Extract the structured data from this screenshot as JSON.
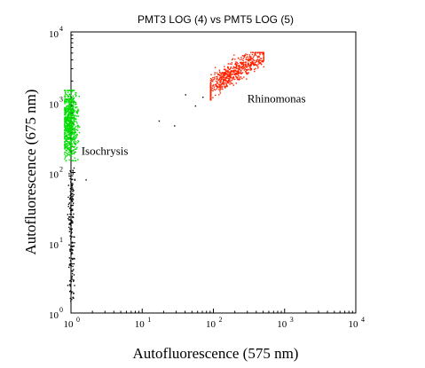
{
  "chart_data": {
    "type": "scatter",
    "title": "PMT3 LOG (4) vs PMT5 LOG (5)",
    "xlabel": "Autofluorescence (575 nm)",
    "ylabel": "Autofluorescence (675 nm)",
    "x_scale": "log",
    "y_scale": "log",
    "xlim": [
      1,
      10000
    ],
    "ylim": [
      1,
      10000
    ],
    "x_ticks": [
      {
        "base": "10",
        "exp": "0",
        "value": 1
      },
      {
        "base": "10",
        "exp": "1",
        "value": 10
      },
      {
        "base": "10",
        "exp": "2",
        "value": 100
      },
      {
        "base": "10",
        "exp": "3",
        "value": 1000
      },
      {
        "base": "10",
        "exp": "4",
        "value": 10000
      }
    ],
    "y_ticks": [
      {
        "base": "10",
        "exp": "0",
        "value": 1
      },
      {
        "base": "10",
        "exp": "1",
        "value": 10
      },
      {
        "base": "10",
        "exp": "2",
        "value": 100
      },
      {
        "base": "10",
        "exp": "3",
        "value": 1000
      },
      {
        "base": "10",
        "exp": "4",
        "value": 10000
      }
    ],
    "grid": false,
    "populations": [
      {
        "label": "Isochrysis",
        "color": "#00dd00",
        "x_center": 0.95,
        "y_center": 500,
        "x_range": [
          0.8,
          1.3
        ],
        "y_range": [
          150,
          1500
        ],
        "label_x": 1.4,
        "label_y": 180
      },
      {
        "label": "Rhinomonas",
        "color": "#ff2200",
        "x_center": 200,
        "y_center": 2800,
        "x_range": [
          90,
          500
        ],
        "y_range": [
          1100,
          5200
        ],
        "label_x": 300,
        "label_y": 1000
      },
      {
        "label": "",
        "color": "#000000",
        "x_center": 1.0,
        "y_center": 12,
        "x_range": [
          0.85,
          1.2
        ],
        "y_range": [
          1.5,
          120
        ]
      }
    ],
    "sparse_points": [
      {
        "x": 1.6,
        "y": 80
      },
      {
        "x": 17,
        "y": 550
      },
      {
        "x": 28,
        "y": 470
      },
      {
        "x": 40,
        "y": 1300
      },
      {
        "x": 55,
        "y": 900
      },
      {
        "x": 70,
        "y": 1200
      }
    ]
  }
}
